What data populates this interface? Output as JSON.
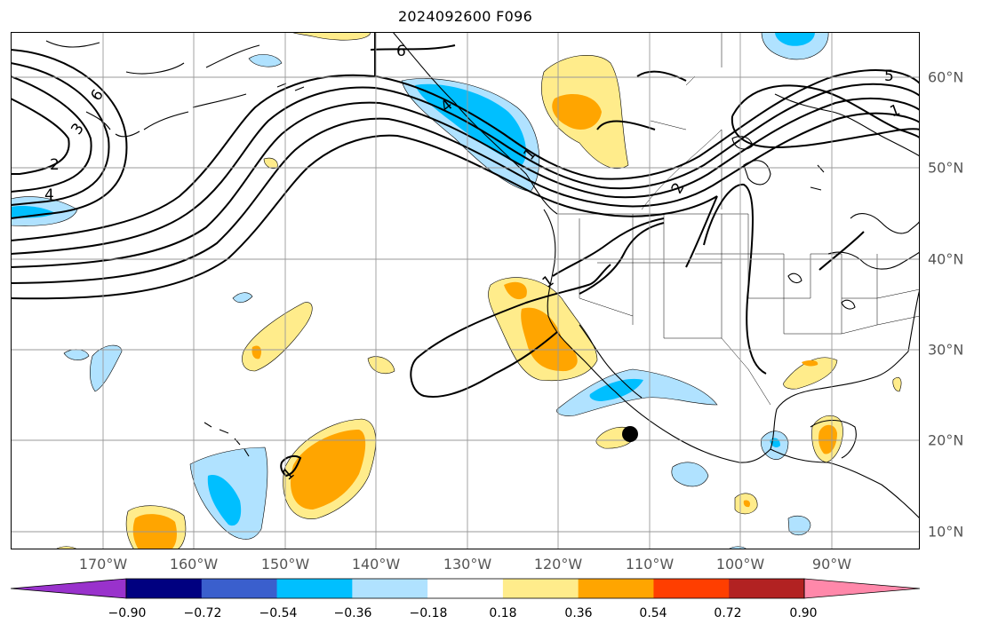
{
  "title": "2024092600 F096",
  "lon_labels": [
    "170°W",
    "160°W",
    "150°W",
    "140°W",
    "130°W",
    "120°W",
    "110°W",
    "100°W",
    "90°W"
  ],
  "lat_labels": [
    "60°N",
    "50°N",
    "40°N",
    "30°N",
    "20°N",
    "10°N"
  ],
  "contour_labels": [
    "6",
    "6",
    "5",
    "3",
    "2",
    "4",
    "2",
    "1",
    "1",
    "4",
    "1",
    "1"
  ],
  "colorbar": {
    "colors": [
      "#9932cc",
      "#000080",
      "#3a5fcd",
      "#00bfff",
      "#b0e2ff",
      "#ffffff",
      "#ffec8b",
      "#ffa500",
      "#ff3e00",
      "#b22222",
      "#ff88aa"
    ],
    "ticks": [
      "−0.90",
      "−0.72",
      "−0.54",
      "−0.36",
      "−0.18",
      "0.18",
      "0.36",
      "0.54",
      "0.72",
      "0.90"
    ]
  },
  "marker": "storm-center-dot"
}
